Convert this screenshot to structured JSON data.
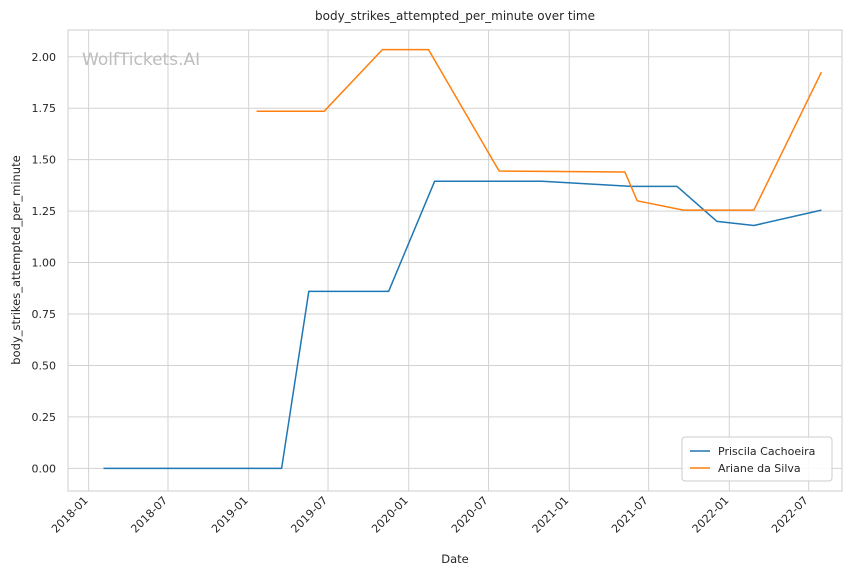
{
  "chart_data": {
    "type": "line",
    "title": "body_strikes_attempted_per_minute over time",
    "xlabel": "Date",
    "ylabel": "body_strikes_attempted_per_minute",
    "watermark": "WolfTickets.AI",
    "xlim": [
      "2017-11-15",
      "2022-09-15"
    ],
    "ylim": [
      -0.11,
      2.13
    ],
    "x_ticks": [
      "2018-01",
      "2018-07",
      "2019-01",
      "2019-07",
      "2020-01",
      "2020-07",
      "2021-01",
      "2021-07",
      "2022-01",
      "2022-07"
    ],
    "y_ticks": [
      "0.00",
      "0.25",
      "0.50",
      "0.75",
      "1.00",
      "1.25",
      "1.50",
      "1.75",
      "2.00"
    ],
    "grid": true,
    "legend_position": "lower-right",
    "series": [
      {
        "name": "Priscila Cachoeira",
        "color": "#1f77b4",
        "points": [
          [
            "2018-02-04",
            0.0
          ],
          [
            "2019-03-17",
            0.0
          ],
          [
            "2019-05-18",
            0.86
          ],
          [
            "2019-11-16",
            0.86
          ],
          [
            "2020-02-29",
            1.395
          ],
          [
            "2020-10-31",
            1.395
          ],
          [
            "2021-05-22",
            1.37
          ],
          [
            "2021-09-04",
            1.37
          ],
          [
            "2021-12-04",
            1.2
          ],
          [
            "2022-02-26",
            1.18
          ],
          [
            "2022-07-30",
            1.255
          ]
        ]
      },
      {
        "name": "Ariane da Silva",
        "color": "#ff7f0e",
        "points": [
          [
            "2019-01-19",
            1.735
          ],
          [
            "2019-06-22",
            1.735
          ],
          [
            "2019-11-02",
            2.035
          ],
          [
            "2020-02-15",
            2.035
          ],
          [
            "2020-07-25",
            1.445
          ],
          [
            "2021-05-08",
            1.44
          ],
          [
            "2021-06-05",
            1.3
          ],
          [
            "2021-09-18",
            1.255
          ],
          [
            "2022-02-26",
            1.255
          ],
          [
            "2022-07-30",
            1.925
          ]
        ]
      }
    ]
  }
}
